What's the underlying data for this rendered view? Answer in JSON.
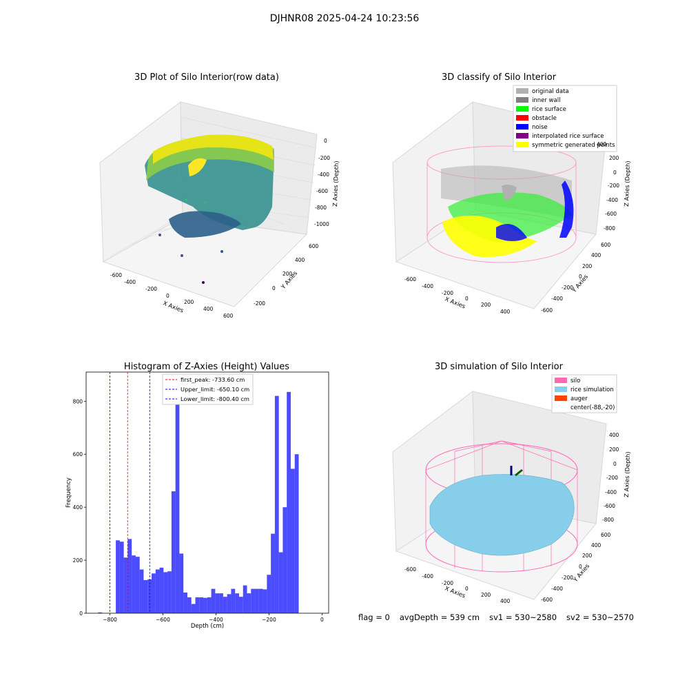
{
  "figure_title": "DJHNR08 2025-04-24 10:23:56",
  "panels": {
    "raw": {
      "title": "3D Plot of Silo Interior(row data)",
      "xlabel": "X Axies",
      "ylabel": "Y Axies",
      "zlabel": "Z Axies (Depth)",
      "x_ticks": [
        "-600",
        "-400",
        "-200",
        "0",
        "200",
        "400",
        "600"
      ],
      "y_ticks": [
        "-200",
        "0",
        "200",
        "400",
        "600"
      ],
      "z_ticks": [
        "0",
        "-200",
        "-400",
        "-600",
        "-800",
        "-1000"
      ]
    },
    "classify": {
      "title": "3D classify of Silo Interior",
      "xlabel": "X Axies",
      "ylabel": "Y Axies",
      "zlabel": "Z Axies (Depth)",
      "x_ticks": [
        "-600",
        "-400",
        "-200",
        "0",
        "200",
        "400"
      ],
      "y_ticks": [
        "-600",
        "-400",
        "-200",
        "0",
        "200",
        "400",
        "600"
      ],
      "z_ticks": [
        "400",
        "200",
        "0",
        "-200",
        "-400",
        "-600",
        "-800"
      ],
      "legend": [
        {
          "label": "original data",
          "color": "#b0b0b0"
        },
        {
          "label": "inner wall",
          "color": "#808080"
        },
        {
          "label": "rice surface",
          "color": "#00ff00"
        },
        {
          "label": "obstacle",
          "color": "#ff0000"
        },
        {
          "label": "noise",
          "color": "#0000ff"
        },
        {
          "label": "interpolated rice surface",
          "color": "#800080"
        },
        {
          "label": "symmetric generated points",
          "color": "#ffff00"
        }
      ]
    },
    "simulation": {
      "title": "3D simulation of Silo Interior",
      "xlabel": "X Axies",
      "ylabel": "Y Axies",
      "zlabel": "Z Axies (Depth)",
      "x_ticks": [
        "-600",
        "-400",
        "-200",
        "0",
        "200",
        "400"
      ],
      "y_ticks": [
        "-600",
        "-400",
        "-200",
        "0",
        "200",
        "400",
        "600"
      ],
      "z_ticks": [
        "400",
        "200",
        "0",
        "-200",
        "-400",
        "-600",
        "-800"
      ],
      "legend": [
        {
          "label": "silo",
          "color": "#ff69b4"
        },
        {
          "label": "rice simulation",
          "color": "#87ceeb"
        },
        {
          "label": "auger",
          "color": "#ff4500"
        },
        {
          "label": "center(-88,-20)",
          "color": "#ffffff"
        }
      ]
    }
  },
  "chart_data": {
    "type": "bar",
    "title": "Histogram of Z-Axies (Height) Values",
    "xlabel": "Depth (cm)",
    "ylabel": "Frequency",
    "xlim": [
      -890,
      25
    ],
    "ylim": [
      0,
      910
    ],
    "x_ticks": [
      -800,
      -600,
      -400,
      -200,
      0
    ],
    "y_ticks": [
      0,
      200,
      400,
      600,
      800
    ],
    "bar_color": "#0000ff",
    "bins": [
      [
        -845,
        -830,
        3
      ],
      [
        -778,
        -763,
        275
      ],
      [
        -763,
        -748,
        270
      ],
      [
        -748,
        -733,
        210
      ],
      [
        -733,
        -718,
        280
      ],
      [
        -718,
        -703,
        218
      ],
      [
        -703,
        -688,
        213
      ],
      [
        -688,
        -673,
        165
      ],
      [
        -673,
        -658,
        125
      ],
      [
        -658,
        -643,
        128
      ],
      [
        -643,
        -628,
        150
      ],
      [
        -628,
        -613,
        165
      ],
      [
        -613,
        -598,
        172
      ],
      [
        -598,
        -583,
        155
      ],
      [
        -583,
        -568,
        158
      ],
      [
        -568,
        -553,
        460
      ],
      [
        -553,
        -538,
        860
      ],
      [
        -538,
        -523,
        225
      ],
      [
        -523,
        -508,
        78
      ],
      [
        -508,
        -493,
        60
      ],
      [
        -493,
        -478,
        35
      ],
      [
        -478,
        -463,
        60
      ],
      [
        -463,
        -448,
        60
      ],
      [
        -448,
        -433,
        58
      ],
      [
        -433,
        -418,
        60
      ],
      [
        -418,
        -403,
        92
      ],
      [
        -403,
        -388,
        75
      ],
      [
        -388,
        -373,
        75
      ],
      [
        -373,
        -358,
        62
      ],
      [
        -358,
        -343,
        72
      ],
      [
        -343,
        -328,
        92
      ],
      [
        -328,
        -313,
        75
      ],
      [
        -313,
        -298,
        62
      ],
      [
        -298,
        -283,
        105
      ],
      [
        -283,
        -268,
        75
      ],
      [
        -268,
        -253,
        92
      ],
      [
        -253,
        -238,
        92
      ],
      [
        -238,
        -223,
        92
      ],
      [
        -223,
        -208,
        90
      ],
      [
        -208,
        -193,
        145
      ],
      [
        -193,
        -178,
        300
      ],
      [
        -178,
        -163,
        820
      ],
      [
        -163,
        -148,
        230
      ],
      [
        -148,
        -133,
        400
      ],
      [
        -133,
        -118,
        835
      ],
      [
        -118,
        -103,
        545
      ],
      [
        -103,
        -88,
        600
      ]
    ],
    "vlines": [
      {
        "label": "first_peak: -733.60 cm",
        "x": -733.6,
        "color": "#ff0000"
      },
      {
        "label": "Upper_limit: -650.10 cm",
        "x": -650.1,
        "color": "#0000ff"
      },
      {
        "label": "Lower_limit: -800.40 cm",
        "x": -800.4,
        "color": "#0000ff"
      }
    ]
  },
  "footer": {
    "flag": "flag = 0",
    "avg_depth": "avgDepth = 539 cm",
    "sv1": "sv1 = 530~2580",
    "sv2": "sv2 = 530~2570"
  }
}
